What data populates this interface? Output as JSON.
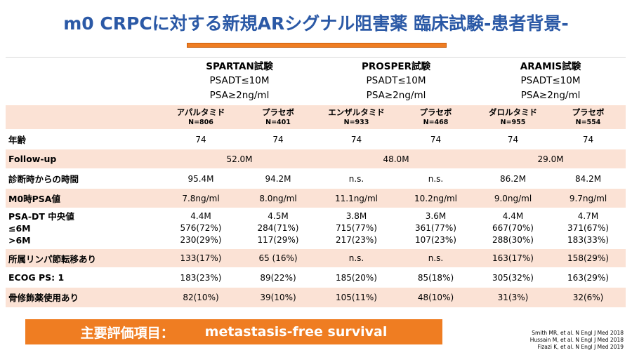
{
  "title": "m0 CRPCに対する新規ARシグナル阻害薬 臨床試験-患者背景-",
  "trials": [
    {
      "name": "SPARTAN試験",
      "criteria1": "PSADT≤10M",
      "criteria2": "PSA≥2ng/ml"
    },
    {
      "name": "PROSPER試験",
      "criteria1": "PSADT≤10M",
      "criteria2": "PSA≥2ng/ml"
    },
    {
      "name": "ARAMIS試験",
      "criteria1": "PSADT≤10M",
      "criteria2": "PSA≥2ng/ml"
    }
  ],
  "arms": [
    {
      "name": "アパルタミド",
      "n": "N=806"
    },
    {
      "name": "プラセボ",
      "n": "N=401"
    },
    {
      "name": "エンザルタミド",
      "n": "N=933"
    },
    {
      "name": "プラセボ",
      "n": "N=468"
    },
    {
      "name": "ダロルタミド",
      "n": "N=955"
    },
    {
      "name": "プラセボ",
      "n": "N=554"
    }
  ],
  "rows": {
    "age": {
      "label": "年齢",
      "values": [
        "74",
        "74",
        "74",
        "74",
        "74",
        "74"
      ]
    },
    "followup": {
      "label": "Follow-up",
      "values": [
        "52.0M",
        "48.0M",
        "29.0M"
      ]
    },
    "time_from_dx": {
      "label": "診断時からの時間",
      "values": [
        "95.4M",
        "94.2M",
        "n.s.",
        "n.s.",
        "86.2M",
        "84.2M"
      ]
    },
    "m0_psa": {
      "label": "M0時PSA値",
      "values": [
        "7.8ng/ml",
        "8.0ng/ml",
        "11.1ng/ml",
        "10.2ng/ml",
        "9.0ng/ml",
        "9.7ng/ml"
      ]
    },
    "psadt": {
      "label": "PSA-DT 中央値",
      "sub_le6": "≤6M",
      "sub_gt6": ">6M",
      "median": [
        "4.4M",
        "4.5M",
        "3.8M",
        "3.6M",
        "4.4M",
        "4.7M"
      ],
      "le6": [
        "576(72%)",
        "284(71%)",
        "715(77%)",
        "361(77%)",
        "667(70%)",
        "371(67%)"
      ],
      "gt6": [
        "230(29%)",
        "117(29%)",
        "217(23%)",
        "107(23%)",
        "288(30%)",
        "183(33%)"
      ]
    },
    "ln": {
      "label": "所属リンパ節転移あり",
      "values": [
        "133(17%)",
        "65 (16%)",
        "n.s.",
        "n.s.",
        "163(17%)",
        "158(29%)"
      ]
    },
    "ecog": {
      "label": "ECOG PS: 1",
      "values": [
        "183(23%)",
        "89(22%)",
        "185(20%)",
        "85(18%)",
        "305(32%)",
        "163(29%)"
      ]
    },
    "bone": {
      "label": "骨修飾薬使用あり",
      "values": [
        "82(10%)",
        "39(10%)",
        "105(11%)",
        "48(10%)",
        "31(3%)",
        "32(6%)"
      ]
    }
  },
  "footer": {
    "label": "主要評価項目：",
    "endpoint": "metastasis-free survival"
  },
  "references": [
    "Smith MR, et al. N Engl J Med 2018",
    "Hussain M, et al. N Engl J Med 2018",
    "Fizazi K, et al. N Engl J Med 2019"
  ],
  "colors": {
    "title": "#2b59a6",
    "accent": "#ef7d22",
    "row_shade": "#fbe2d5"
  }
}
